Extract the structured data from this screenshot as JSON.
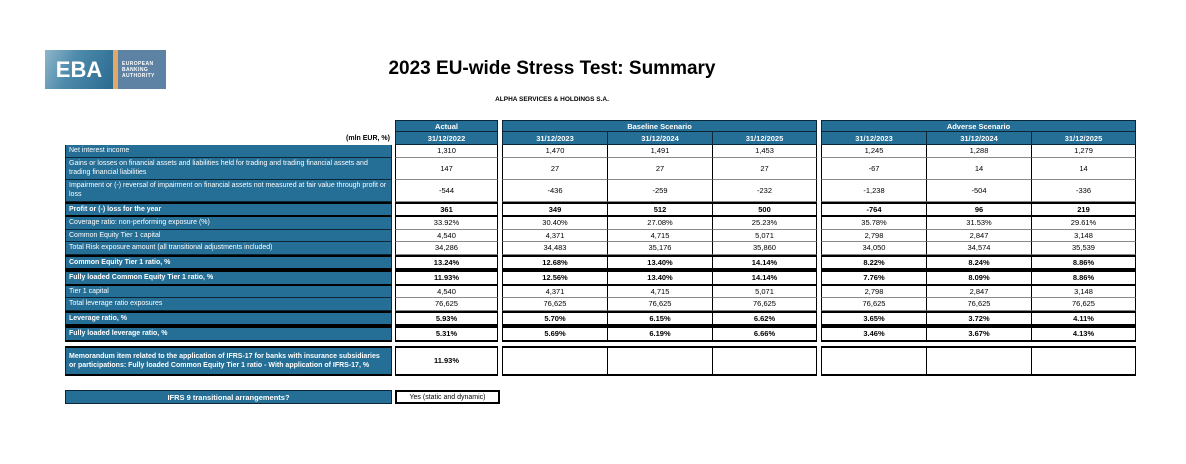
{
  "logo": {
    "acronym": "EBA",
    "org_lines": [
      "EUROPEAN",
      "BANKING",
      "AUTHORITY"
    ]
  },
  "header": {
    "title": "2023 EU-wide Stress Test: Summary",
    "subtitle": "ALPHA SERVICES & HOLDINGS S.A."
  },
  "table": {
    "unit_label": "(mln EUR, %)",
    "col_groups": [
      {
        "label": "Actual",
        "dates": [
          "31/12/2022"
        ]
      },
      {
        "label": "Baseline Scenario",
        "dates": [
          "31/12/2023",
          "31/12/2024",
          "31/12/2025"
        ]
      },
      {
        "label": "Adverse Scenario",
        "dates": [
          "31/12/2023",
          "31/12/2024",
          "31/12/2025"
        ]
      }
    ],
    "rows": [
      {
        "label": "Net interest income",
        "bold": false,
        "values": [
          "1,310",
          "1,470",
          "1,491",
          "1,453",
          "1,245",
          "1,288",
          "1,279"
        ]
      },
      {
        "label": "Gains or losses on financial assets and liabilities held for trading and trading financial assets and trading financial liabilities",
        "bold": false,
        "values": [
          "147",
          "27",
          "27",
          "27",
          "-67",
          "14",
          "14"
        ]
      },
      {
        "label": "Impairment or (-) reversal of impairment on financial assets not measured at fair value through profit or loss",
        "bold": false,
        "values": [
          "-544",
          "-436",
          "-259",
          "-232",
          "-1,238",
          "-504",
          "-336"
        ]
      },
      {
        "label": "Profit or (-) loss for the year",
        "bold": true,
        "values": [
          "361",
          "349",
          "512",
          "500",
          "-764",
          "96",
          "219"
        ]
      },
      {
        "label": "Coverage ratio: non-performing exposure (%)",
        "bold": false,
        "values": [
          "33.92%",
          "30.40%",
          "27.08%",
          "25.23%",
          "35.78%",
          "31.53%",
          "29.61%"
        ]
      },
      {
        "label": "Common Equity Tier 1 capital",
        "bold": false,
        "values": [
          "4,540",
          "4,371",
          "4,715",
          "5,071",
          "2,798",
          "2,847",
          "3,148"
        ]
      },
      {
        "label": "Total Risk exposure amount (all transitional adjustments included)",
        "bold": false,
        "values": [
          "34,286",
          "34,483",
          "35,176",
          "35,860",
          "34,050",
          "34,574",
          "35,539"
        ]
      },
      {
        "label": "Common Equity Tier 1 ratio, %",
        "bold": true,
        "values": [
          "13.24%",
          "12.68%",
          "13.40%",
          "14.14%",
          "8.22%",
          "8.24%",
          "8.86%"
        ]
      },
      {
        "label": "Fully loaded Common Equity Tier 1 ratio, %",
        "bold": true,
        "values": [
          "11.93%",
          "12.56%",
          "13.40%",
          "14.14%",
          "7.76%",
          "8.09%",
          "8.86%"
        ]
      },
      {
        "label": "Tier 1 capital",
        "bold": false,
        "values": [
          "4,540",
          "4,371",
          "4,715",
          "5,071",
          "2,798",
          "2,847",
          "3,148"
        ]
      },
      {
        "label": "Total leverage ratio exposures",
        "bold": false,
        "values": [
          "76,625",
          "76,625",
          "76,625",
          "76,625",
          "76,625",
          "76,625",
          "76,625"
        ]
      },
      {
        "label": "Leverage ratio, %",
        "bold": true,
        "values": [
          "5.93%",
          "5.70%",
          "6.15%",
          "6.62%",
          "3.65%",
          "3.72%",
          "4.11%"
        ]
      },
      {
        "label": "Fully loaded leverage ratio, %",
        "bold": true,
        "values": [
          "5.31%",
          "5.69%",
          "6.19%",
          "6.66%",
          "3.46%",
          "3.67%",
          "4.13%"
        ]
      },
      {
        "label": "Memorandum item related to the application of IFRS-17 for banks with insurance subsidiaries or participations: Fully loaded Common Equity Tier 1 ratio - With application of IFRS-17, %",
        "bold": true,
        "values": [
          "11.93%",
          "",
          "",
          "",
          "",
          "",
          ""
        ]
      }
    ]
  },
  "footer": {
    "question": "IFRS 9 transitional arrangements?",
    "answer": "Yes (static and dynamic)"
  },
  "colors": {
    "header_teal": "#256e95",
    "border_dark": "#0a2637",
    "accent_orange": "#e2a868",
    "logo_slate": "#5d82a3"
  }
}
